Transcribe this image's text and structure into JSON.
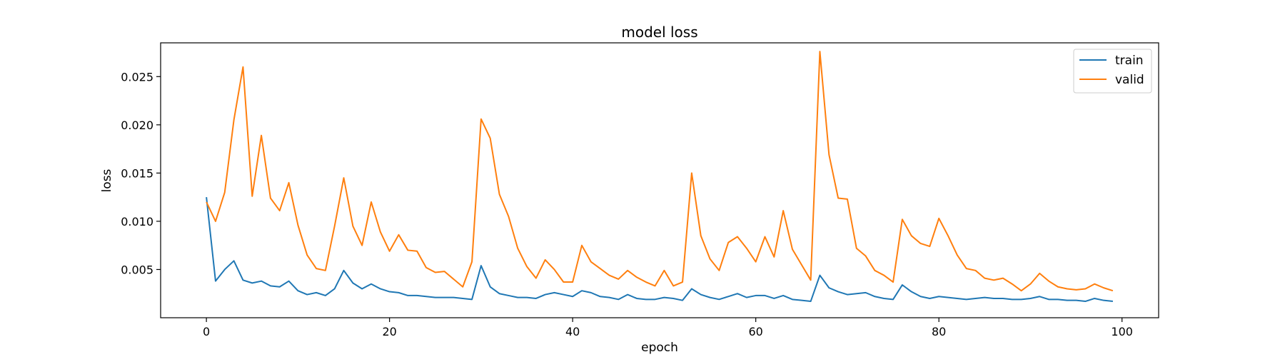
{
  "chart_data": {
    "type": "line",
    "title": "model loss",
    "xlabel": "epoch",
    "ylabel": "loss",
    "xlim": [
      -5,
      104
    ],
    "ylim": [
      0.0,
      0.0285
    ],
    "xticks": [
      0,
      20,
      40,
      60,
      80,
      100
    ],
    "yticks": [
      0.005,
      0.01,
      0.015,
      0.02,
      0.025
    ],
    "ytick_labels": [
      "0.005",
      "0.010",
      "0.015",
      "0.020",
      "0.025"
    ],
    "grid": false,
    "legend_position": "top-right",
    "series": [
      {
        "name": "train",
        "color": "#1f77b4",
        "values": [
          0.0125,
          0.0038,
          0.005,
          0.0059,
          0.0039,
          0.0036,
          0.0038,
          0.0033,
          0.0032,
          0.0038,
          0.0028,
          0.0024,
          0.0026,
          0.0023,
          0.003,
          0.0049,
          0.0036,
          0.003,
          0.0035,
          0.003,
          0.0027,
          0.0026,
          0.0023,
          0.0023,
          0.0022,
          0.0021,
          0.0021,
          0.0021,
          0.002,
          0.0019,
          0.0054,
          0.0032,
          0.0025,
          0.0023,
          0.0021,
          0.0021,
          0.002,
          0.0024,
          0.0026,
          0.0024,
          0.0022,
          0.0028,
          0.0026,
          0.0022,
          0.0021,
          0.0019,
          0.0024,
          0.002,
          0.0019,
          0.0019,
          0.0021,
          0.002,
          0.0018,
          0.003,
          0.0024,
          0.0021,
          0.0019,
          0.0022,
          0.0025,
          0.0021,
          0.0023,
          0.0023,
          0.002,
          0.0023,
          0.0019,
          0.0018,
          0.0017,
          0.0044,
          0.0031,
          0.0027,
          0.0024,
          0.0025,
          0.0026,
          0.0022,
          0.002,
          0.0019,
          0.0034,
          0.0027,
          0.0022,
          0.002,
          0.0022,
          0.0021,
          0.002,
          0.0019,
          0.002,
          0.0021,
          0.002,
          0.002,
          0.0019,
          0.0019,
          0.002,
          0.0022,
          0.0019,
          0.0019,
          0.0018,
          0.0018,
          0.0017,
          0.002,
          0.0018,
          0.0017
        ]
      },
      {
        "name": "valid",
        "color": "#ff7f0e",
        "values": [
          0.012,
          0.01,
          0.013,
          0.0205,
          0.026,
          0.0126,
          0.0189,
          0.0124,
          0.0111,
          0.014,
          0.0096,
          0.0065,
          0.0051,
          0.0049,
          0.0095,
          0.0145,
          0.0095,
          0.0075,
          0.012,
          0.0089,
          0.0069,
          0.0086,
          0.007,
          0.0069,
          0.0052,
          0.0047,
          0.0048,
          0.004,
          0.0032,
          0.0058,
          0.0206,
          0.0186,
          0.0128,
          0.0105,
          0.0072,
          0.0053,
          0.0041,
          0.006,
          0.005,
          0.0037,
          0.0037,
          0.0075,
          0.0058,
          0.0051,
          0.0044,
          0.004,
          0.0049,
          0.0042,
          0.0037,
          0.0033,
          0.0049,
          0.0033,
          0.0037,
          0.015,
          0.0085,
          0.0061,
          0.0049,
          0.0078,
          0.0084,
          0.0072,
          0.0058,
          0.0084,
          0.0063,
          0.0111,
          0.0071,
          0.0055,
          0.0039,
          0.0276,
          0.0169,
          0.0124,
          0.0123,
          0.0072,
          0.0064,
          0.0049,
          0.0044,
          0.0037,
          0.0102,
          0.0085,
          0.0077,
          0.0074,
          0.0103,
          0.0085,
          0.0065,
          0.0051,
          0.0049,
          0.0041,
          0.0039,
          0.0041,
          0.0035,
          0.0028,
          0.0035,
          0.0046,
          0.0038,
          0.0032,
          0.003,
          0.0029,
          0.003,
          0.0035,
          0.0031,
          0.0028
        ]
      }
    ]
  }
}
